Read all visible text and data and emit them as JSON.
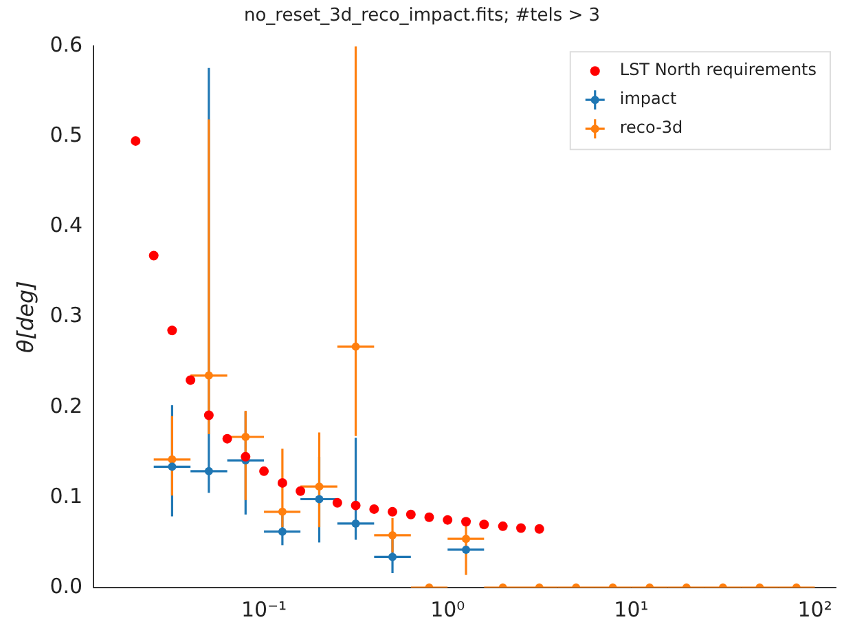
{
  "chart_data": {
    "type": "scatter",
    "title": "no_reset_3d_reco_impact.fits; #tels > 3",
    "ylabel": "θ[deg]",
    "log": "x",
    "grid": false,
    "legend": "top right",
    "marker": "circle",
    "xlim": [
      0.0118,
      130
    ],
    "xticks": [
      {
        "value": 0.1,
        "label": "10⁻¹"
      },
      {
        "value": 1,
        "label": "10⁰"
      },
      {
        "value": 10,
        "label": "10¹"
      },
      {
        "value": 100,
        "label": "10²"
      }
    ],
    "ylim": [
      0,
      0.6
    ],
    "yticks": [
      {
        "value": 0,
        "label": "0.0"
      },
      0.1,
      0.2,
      0.3,
      0.4,
      0.5,
      0.6
    ],
    "series": [
      {
        "name": "LST North requirements",
        "color": "#ff0000",
        "x": [
          0.02,
          0.0251,
          0.0316,
          0.0398,
          0.0501,
          0.0631,
          0.0794,
          0.1,
          0.126,
          0.158,
          0.2,
          0.251,
          0.316,
          0.398,
          0.501,
          0.631,
          0.794,
          1,
          1.26,
          1.58,
          2,
          2.51,
          3.16
        ],
        "values": [
          0.495,
          0.368,
          0.285,
          0.23,
          0.191,
          0.165,
          0.145,
          0.129,
          0.116,
          0.107,
          null,
          0.094,
          0.091,
          0.087,
          0.084,
          0.081,
          0.078,
          0.075,
          0.073,
          0.07,
          0.068,
          0.066,
          0.065
        ]
      },
      {
        "name": "impact",
        "color": "#1f77b4",
        "x": [
          0.0316,
          0.0501,
          0.0794,
          0.126,
          0.2,
          0.316,
          0.501,
          1.26
        ],
        "values": [
          0.134,
          0.129,
          0.141,
          0.062,
          0.098,
          0.071,
          0.034,
          0.042
        ],
        "errors": [
          [
            0.079,
            0.202
          ],
          [
            0.105,
            0.576
          ],
          [
            0.081,
            0.195
          ],
          [
            0.047,
            0.08
          ],
          [
            0.05,
            0.145
          ],
          [
            0.053,
            0.166
          ],
          [
            0.016,
            0.054
          ],
          null
        ],
        "xerrors": [
          [
            0.0251,
            0.0398
          ],
          [
            0.0398,
            0.0631
          ],
          [
            0.0631,
            0.1
          ],
          [
            0.1,
            0.158
          ],
          [
            0.158,
            0.251
          ],
          [
            0.251,
            0.398
          ],
          [
            0.398,
            0.631
          ],
          [
            1,
            1.58
          ]
        ]
      },
      {
        "name": "reco-3d",
        "color": "#ff7f0e",
        "x": [
          0.0316,
          0.0501,
          0.0794,
          0.126,
          0.2,
          0.316,
          0.501,
          0.794,
          1.26,
          2,
          3.16,
          5.01,
          7.94,
          12.6,
          20,
          31.6,
          50.1,
          79.4
        ],
        "values": [
          0.142,
          0.235,
          0.167,
          0.084,
          0.112,
          0.267,
          0.058,
          0,
          0.054,
          0,
          0,
          0,
          0,
          0,
          0,
          0,
          0,
          0
        ],
        "errors": [
          [
            0.102,
            0.19
          ],
          [
            0.17,
            0.519
          ],
          [
            0.097,
            0.196
          ],
          [
            0.067,
            0.154
          ],
          [
            0.067,
            0.172
          ],
          [
            0.168,
            0.6
          ],
          [
            0.039,
            0.077
          ],
          null,
          [
            0.014,
            0.077
          ],
          null,
          null,
          null,
          null,
          null,
          null,
          null,
          null,
          null
        ],
        "xerrors": [
          [
            0.0251,
            0.0398
          ],
          [
            0.0398,
            0.0631
          ],
          [
            0.0631,
            0.1
          ],
          [
            0.1,
            0.158
          ],
          [
            0.158,
            0.251
          ],
          [
            0.251,
            0.398
          ],
          [
            0.398,
            0.631
          ],
          [
            0.631,
            1
          ],
          [
            1,
            1.58
          ],
          [
            1.58,
            2.51
          ],
          [
            2.51,
            3.98
          ],
          [
            3.98,
            6.31
          ],
          [
            6.31,
            10
          ],
          [
            10,
            15.8
          ],
          [
            15.8,
            25.1
          ],
          [
            25.1,
            39.8
          ],
          [
            39.8,
            63.1
          ],
          [
            63.1,
            100
          ]
        ]
      }
    ]
  }
}
